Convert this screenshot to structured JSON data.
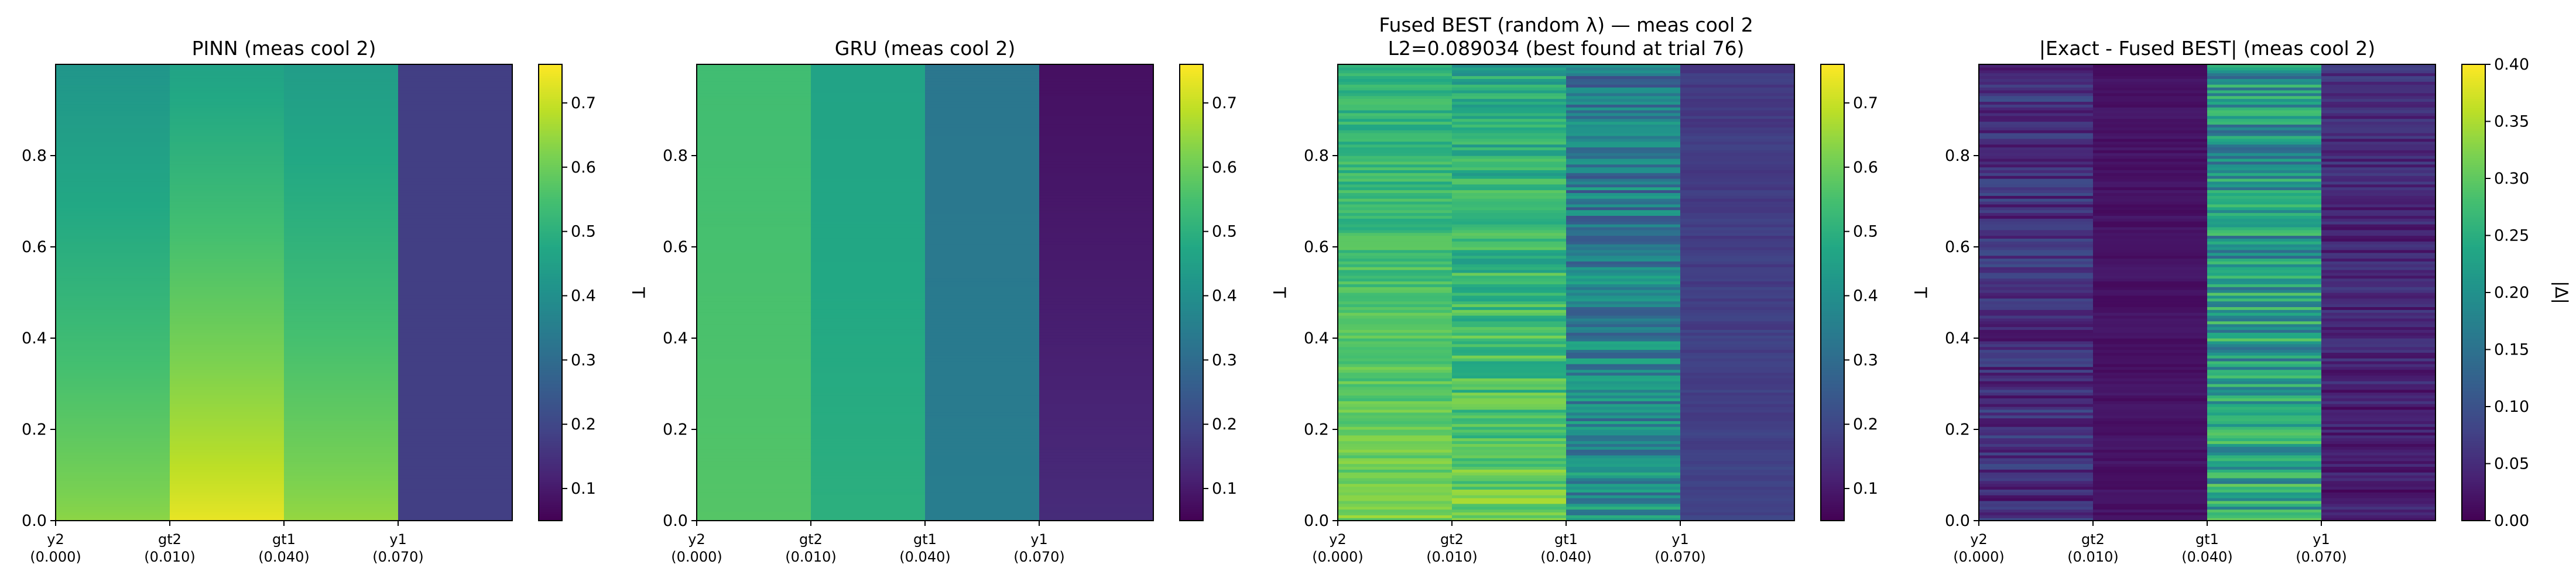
{
  "chart_data": [
    {
      "type": "heatmap",
      "title": "PINN (meas cool 2)",
      "subtitle": "",
      "xtick_labels": [
        [
          "y2",
          "(0.000)"
        ],
        [
          "gt2",
          "(0.010)"
        ],
        [
          "gt1",
          "(0.040)"
        ],
        [
          "y1",
          "(0.070)"
        ]
      ],
      "ytick_labels": [
        "0.0",
        "0.2",
        "0.4",
        "0.6",
        "0.8"
      ],
      "ylim": [
        0,
        1
      ],
      "columns": [
        {
          "name": "y2",
          "bottom": 0.64,
          "top": 0.42,
          "noise": 0
        },
        {
          "name": "gt2",
          "bottom": 0.74,
          "top": 0.46,
          "noise": 0
        },
        {
          "name": "gt1",
          "bottom": 0.65,
          "top": 0.44,
          "noise": 0
        },
        {
          "name": "y1",
          "bottom": 0.18,
          "top": 0.18,
          "noise": 0
        }
      ],
      "colorbar": {
        "label": "T",
        "vmin": 0.05,
        "vmax": 0.76,
        "ticks": [
          "0.1",
          "0.2",
          "0.3",
          "0.4",
          "0.5",
          "0.6",
          "0.7"
        ]
      }
    },
    {
      "type": "heatmap",
      "title": "GRU (meas cool 2)",
      "subtitle": "",
      "xtick_labels": [
        [
          "y2",
          "(0.000)"
        ],
        [
          "gt2",
          "(0.010)"
        ],
        [
          "gt1",
          "(0.040)"
        ],
        [
          "y1",
          "(0.070)"
        ]
      ],
      "ytick_labels": [
        "0.0",
        "0.2",
        "0.4",
        "0.6",
        "0.8"
      ],
      "ylim": [
        0,
        1
      ],
      "columns": [
        {
          "name": "y2",
          "bottom": 0.57,
          "top": 0.54,
          "noise": 0
        },
        {
          "name": "gt2",
          "bottom": 0.5,
          "top": 0.46,
          "noise": 0
        },
        {
          "name": "gt1",
          "bottom": 0.35,
          "top": 0.33,
          "noise": 0
        },
        {
          "name": "y1",
          "bottom": 0.14,
          "top": 0.08,
          "noise": 0
        }
      ],
      "colorbar": {
        "label": "T",
        "vmin": 0.05,
        "vmax": 0.76,
        "ticks": [
          "0.1",
          "0.2",
          "0.3",
          "0.4",
          "0.5",
          "0.6",
          "0.7"
        ]
      }
    },
    {
      "type": "heatmap",
      "title": "Fused BEST (random λ) — meas cool 2",
      "subtitle": "L2=0.089034 (best found at trial 76)",
      "xtick_labels": [
        [
          "y2",
          "(0.000)"
        ],
        [
          "gt2",
          "(0.010)"
        ],
        [
          "gt1",
          "(0.040)"
        ],
        [
          "y1",
          "(0.070)"
        ]
      ],
      "ytick_labels": [
        "0.0",
        "0.2",
        "0.4",
        "0.6",
        "0.8"
      ],
      "ylim": [
        0,
        1
      ],
      "columns": [
        {
          "name": "y2",
          "bottom": 0.62,
          "top": 0.5,
          "noise": 0.05
        },
        {
          "name": "gt2",
          "bottom": 0.6,
          "top": 0.47,
          "noise": 0.08
        },
        {
          "name": "gt1",
          "bottom": 0.4,
          "top": 0.33,
          "noise": 0.12
        },
        {
          "name": "y1",
          "bottom": 0.19,
          "top": 0.17,
          "noise": 0.02
        }
      ],
      "colorbar": {
        "label": "T",
        "vmin": 0.05,
        "vmax": 0.76,
        "ticks": [
          "0.1",
          "0.2",
          "0.3",
          "0.4",
          "0.5",
          "0.6",
          "0.7"
        ]
      }
    },
    {
      "type": "heatmap",
      "title": "|Exact - Fused BEST| (meas cool 2)",
      "subtitle": "",
      "xtick_labels": [
        [
          "y2",
          "(0.000)"
        ],
        [
          "gt2",
          "(0.010)"
        ],
        [
          "gt1",
          "(0.040)"
        ],
        [
          "y1",
          "(0.070)"
        ]
      ],
      "ytick_labels": [
        "0.0",
        "0.2",
        "0.4",
        "0.6",
        "0.8"
      ],
      "ylim": [
        0,
        1
      ],
      "columns": [
        {
          "name": "y2",
          "bottom": 0.05,
          "top": 0.06,
          "noise": 0.04
        },
        {
          "name": "gt2",
          "bottom": 0.02,
          "top": 0.02,
          "noise": 0.01
        },
        {
          "name": "gt1",
          "bottom": 0.24,
          "top": 0.2,
          "noise": 0.08
        },
        {
          "name": "y1",
          "bottom": 0.03,
          "top": 0.05,
          "noise": 0.03
        }
      ],
      "colorbar": {
        "label": "|Δ|",
        "vmin": 0.0,
        "vmax": 0.4,
        "ticks": [
          "0.00",
          "0.05",
          "0.10",
          "0.15",
          "0.20",
          "0.25",
          "0.30",
          "0.35",
          "0.40"
        ]
      }
    }
  ]
}
